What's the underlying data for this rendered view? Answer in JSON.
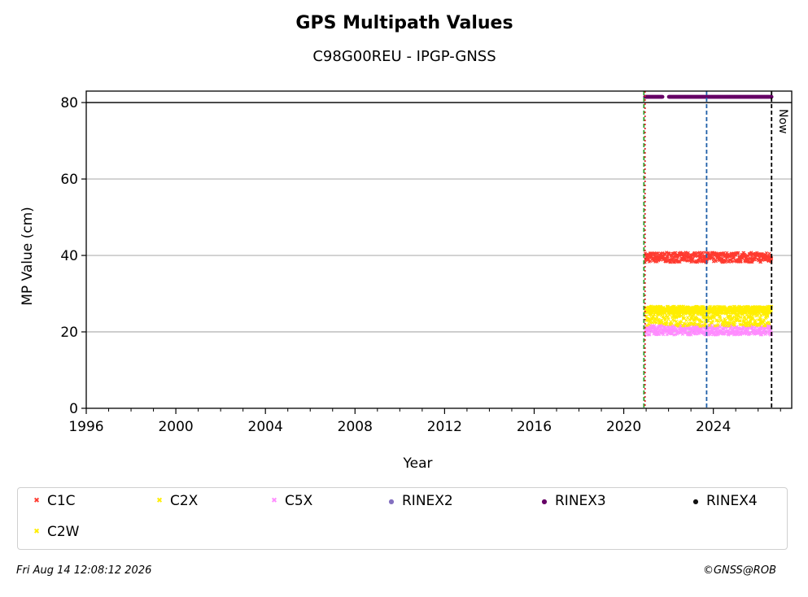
{
  "chart_data": {
    "type": "scatter",
    "title": "GPS Multipath Values",
    "subtitle": "C98G00REU - IPGP-GNSS",
    "xlabel": "Year",
    "ylabel": "MP Value (cm)",
    "xlim": [
      1996,
      2027.5
    ],
    "ylim": [
      0,
      83
    ],
    "x_ticks": [
      "1996",
      "2000",
      "2004",
      "2008",
      "2012",
      "2016",
      "2020",
      "2024"
    ],
    "y_ticks": [
      "0",
      "20",
      "40",
      "60",
      "80"
    ],
    "grid": "horizontal",
    "legend_position": "bottom",
    "now_label": "Now",
    "reference_lines": [
      {
        "x": 2020.9,
        "color": "#2ca02c",
        "style": "dashed"
      },
      {
        "x": 2020.95,
        "color": "#d62728",
        "style": "dotted"
      },
      {
        "x": 2023.7,
        "color": "#1f5fa8",
        "style": "dashed"
      },
      {
        "x": 2026.6,
        "color": "#000000",
        "style": "dashed"
      }
    ],
    "series": [
      {
        "name": "C1C",
        "color": "#ff3b30",
        "marker": "x",
        "x_start": 2020.95,
        "x_end": 2026.6,
        "y": 39.5,
        "spread": 1.3
      },
      {
        "name": "C2X",
        "color": "#ffee00",
        "marker": "x",
        "x_start": 2020.95,
        "x_end": 2026.6,
        "y": 25.8,
        "spread": 0.9
      },
      {
        "name": "C5X",
        "color": "#ff8cff",
        "marker": "x",
        "x_start": 2020.95,
        "x_end": 2026.6,
        "y": 20.5,
        "spread": 1.3
      },
      {
        "name": "RINEX2",
        "color": "#8470c0",
        "marker": "o"
      },
      {
        "name": "RINEX3",
        "color": "#660066",
        "marker": "o",
        "x_start": 2020.95,
        "x_end": 2026.6,
        "y": 81.5,
        "gap": [
          2021.75,
          2022.0
        ]
      },
      {
        "name": "RINEX4",
        "color": "#111111",
        "marker": "o"
      },
      {
        "name": "C2W",
        "color": "#ffee00",
        "marker": "x",
        "x_start": 2021.0,
        "x_end": 2026.5,
        "y": 24.0,
        "spread": 2.5
      }
    ],
    "reference_y": 80
  },
  "footer": {
    "timestamp": "Fri Aug 14 12:08:12 2026",
    "copyright": "©GNSS@ROB"
  }
}
